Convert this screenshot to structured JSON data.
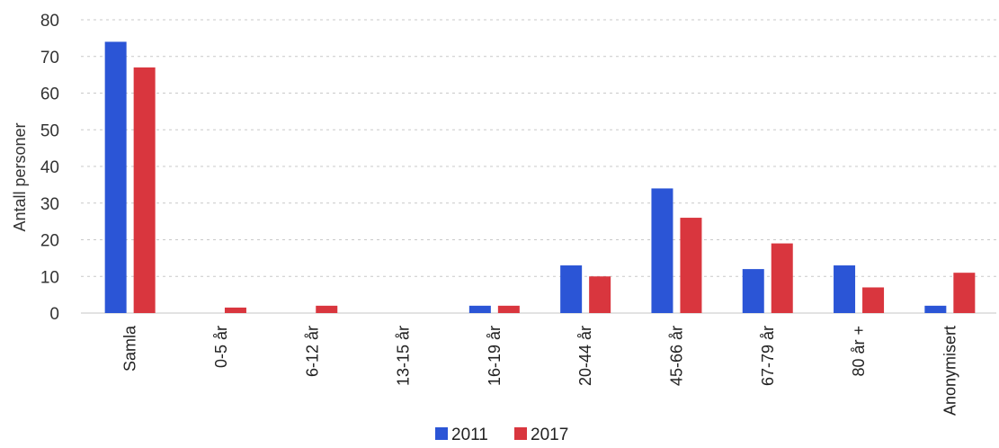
{
  "chart_data": {
    "type": "bar",
    "ylabel": "Antall personer",
    "xlabel": "",
    "ylim": [
      0,
      80
    ],
    "yticks": [
      "0",
      "10",
      "20",
      "30",
      "40",
      "50",
      "60",
      "70",
      "80"
    ],
    "grid": true,
    "legend_position": "bottom",
    "categories": [
      "Samla",
      "0-5 år",
      "6-12 år",
      "13-15 år",
      "16-19 år",
      "20-44 år",
      "45-66 år",
      "67-79 år",
      "80 år +",
      "Anonymisert"
    ],
    "series": [
      {
        "name": "2011",
        "color": "#2b55d6",
        "values": [
          74,
          0,
          0,
          0,
          2,
          13,
          34,
          12,
          13,
          2
        ]
      },
      {
        "name": "2017",
        "color": "#d9363e",
        "values": [
          67,
          1.5,
          2,
          0,
          2,
          10,
          26,
          19,
          7,
          11
        ]
      }
    ]
  }
}
